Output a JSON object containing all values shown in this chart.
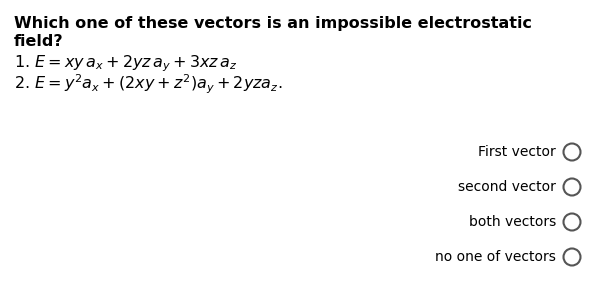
{
  "background_color": "#ffffff",
  "text_color": "#000000",
  "circle_color": "#555555",
  "q_line1": "Which one of these vectors is an impossible electrostatic",
  "q_line2": "field?",
  "eq1": "1. $E = xy\\,a_x + 2yz\\,a_y + 3xz\\,a_z$",
  "eq2": "2. $E = y^2a_x + (2xy + z^2)a_y + 2yza_z.$",
  "options": [
    "First vector",
    "second vector",
    "both vectors",
    "no one of vectors"
  ],
  "q_fontsize": 11.5,
  "eq_fontsize": 11.5,
  "opt_fontsize": 10,
  "figsize": [
    5.97,
    3.04
  ],
  "dpi": 100
}
